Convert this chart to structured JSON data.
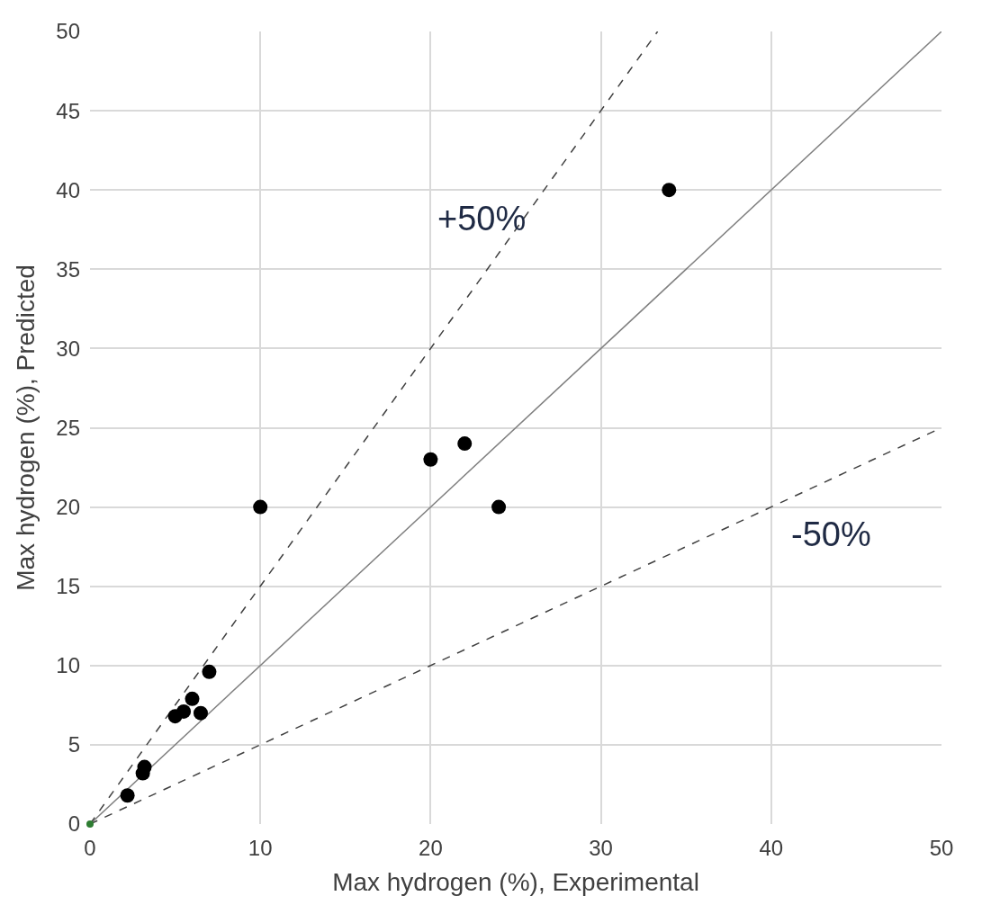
{
  "chart_data": {
    "type": "scatter",
    "xlabel": "Max hydrogen (%), Experimental",
    "ylabel": "Max hydrogen (%), Predicted",
    "xlim": [
      0,
      50
    ],
    "ylim": [
      0,
      50
    ],
    "xticks": [
      0,
      10,
      20,
      30,
      40,
      50
    ],
    "yticks": [
      0,
      5,
      10,
      15,
      20,
      25,
      30,
      35,
      40,
      45,
      50
    ],
    "grid": true,
    "legend": false,
    "series": [
      {
        "type": "line",
        "color": "#7f7f7f",
        "line_style": "solid",
        "marker": "none",
        "x": [
          0,
          50
        ],
        "values": [
          0,
          50
        ]
      },
      {
        "type": "line",
        "color": "#404040",
        "line_style": "dashed",
        "marker": "none",
        "x": [
          0,
          33.33
        ],
        "values": [
          0,
          50
        ]
      },
      {
        "type": "line",
        "color": "#404040",
        "line_style": "dashed",
        "marker": "none",
        "x": [
          0,
          50
        ],
        "values": [
          0,
          25
        ]
      },
      {
        "color": "#000000",
        "marker": "circle",
        "x": [
          2.2,
          3.1,
          3.2,
          5,
          5.5,
          6,
          6.5,
          7,
          10,
          20,
          22,
          24,
          34
        ],
        "values": [
          1.8,
          3.2,
          3.6,
          6.8,
          7.1,
          7.9,
          7,
          9.6,
          20,
          23,
          24,
          20,
          40
        ]
      },
      {
        "color": "#2e7d32",
        "marker": "circle",
        "x": [
          0
        ],
        "values": [
          0
        ]
      }
    ],
    "annotations": [
      "+50%",
      "-50%"
    ]
  }
}
